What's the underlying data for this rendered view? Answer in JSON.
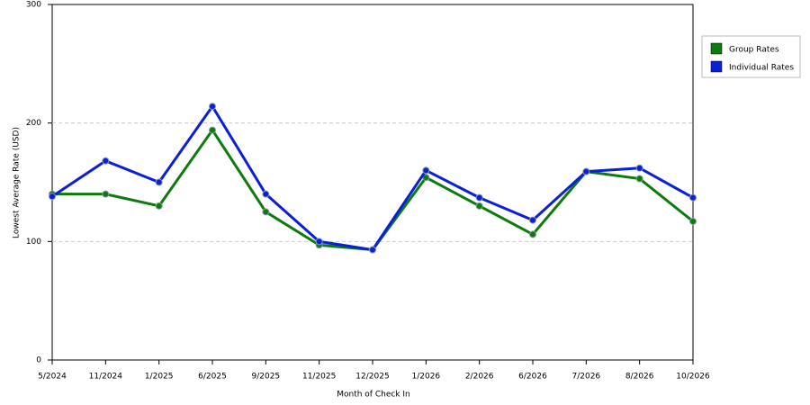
{
  "chart_data": {
    "type": "line",
    "x_label": "Month of Check In",
    "y_label": "Lowest Average Rate (USD)",
    "categories": [
      "5/2024",
      "11/2024",
      "1/2025",
      "6/2025",
      "9/2025",
      "11/2025",
      "12/2025",
      "1/2026",
      "2/2026",
      "6/2026",
      "7/2026",
      "8/2026",
      "10/2026"
    ],
    "series": [
      {
        "name": "Group Rates",
        "color": "#0d7a0d",
        "values": [
          140,
          140,
          130,
          194,
          125,
          97,
          93,
          154,
          130,
          106,
          159,
          153,
          117
        ]
      },
      {
        "name": "Individual Rates",
        "color": "#0a1fd6",
        "values": [
          138,
          168,
          150,
          214,
          140,
          100,
          93,
          160,
          137,
          118,
          159,
          162,
          137
        ]
      }
    ],
    "ylim": [
      0,
      300
    ],
    "yticks": [
      0,
      100,
      200,
      300
    ],
    "grid": true,
    "legend": "right"
  }
}
